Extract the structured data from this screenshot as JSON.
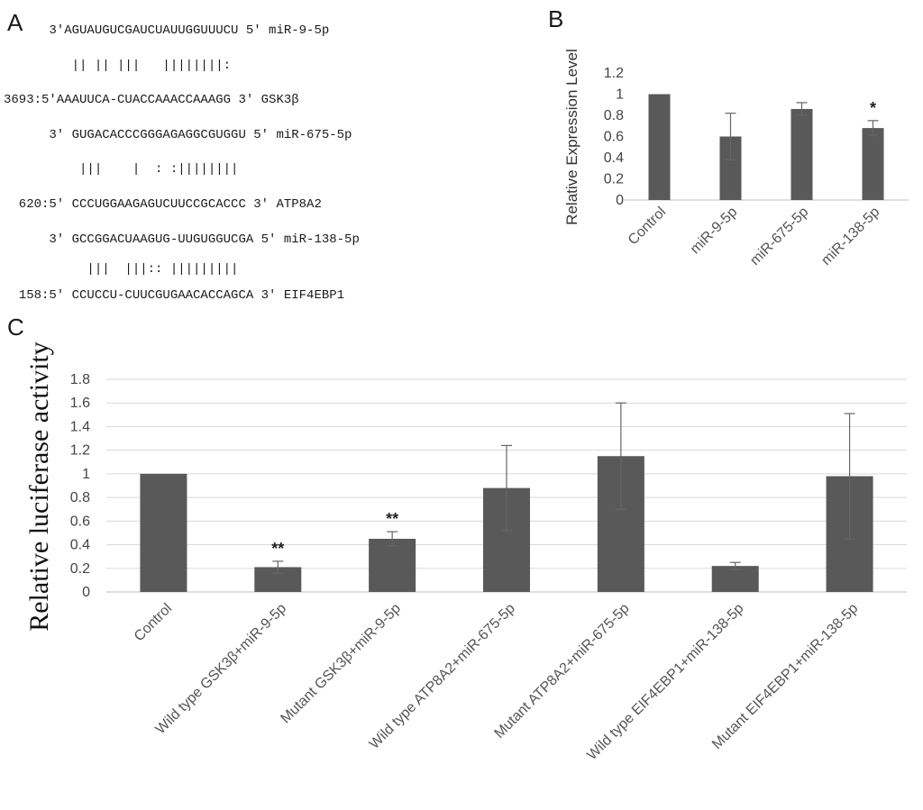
{
  "panels": {
    "a": {
      "label": "A",
      "lines": [
        "      3'AGUAUGUCGAUCUAUUGGUUUCU 5' miR-9-5p",
        "         || || |||   ||||||||:",
        "3693:5'AAAUUCA-CUACCAAACCAAAGG 3' GSK3β",
        "      3' GUGACACCCGGGAGAGGCGUGGU 5' miR-675-5p",
        "          |||    |  : :||||||||",
        "  620:5' CCCUGGAAGAGUCUUCCGCACCC 3' ATP8A2",
        "      3' GCCGGACUAAGUG-UUGUGGUCGA 5' miR-138-5p",
        "           |||  |||:: |||||||||",
        "  158:5' CCUCCU-CUUCGUGAACACCAGCA 3' EIF4EBP1"
      ]
    },
    "b": {
      "label": "B"
    },
    "c": {
      "label": "C"
    }
  },
  "chart_data": [
    {
      "id": "B",
      "type": "bar",
      "ylabel": "Relative Expression Level",
      "xlabel": "",
      "ylim": [
        0,
        1.2
      ],
      "yticks": [
        "0",
        "0.2",
        "0.4",
        "0.6",
        "0.8",
        "1",
        "1.2"
      ],
      "grid": false,
      "categories": [
        "Control",
        "miR-9-5p",
        "miR-675-5p",
        "miR-138-5p"
      ],
      "values": [
        1.0,
        0.6,
        0.86,
        0.68
      ],
      "errors": [
        0.0,
        0.22,
        0.06,
        0.07
      ],
      "annotations": [
        "",
        "",
        "",
        "*"
      ]
    },
    {
      "id": "C",
      "type": "bar",
      "ylabel": "Relative luciferase activity",
      "xlabel": "",
      "ylim": [
        0,
        1.8
      ],
      "yticks": [
        "0",
        "0.2",
        "0.4",
        "0.6",
        "0.8",
        "1",
        "1.2",
        "1.4",
        "1.6",
        "1.8"
      ],
      "grid": true,
      "categories": [
        "Control",
        "Wild type GSK3β+miR-9-5p",
        "Mutant GSK3β+miR-9-5p",
        "Wild type ATP8A2+miR-675-5p",
        "Mutant ATP8A2+miR-675-5p",
        "Wild type EIF4EBP1+miR-138-5p",
        "Mutant EIF4EBP1+miR-138-5p"
      ],
      "values": [
        1.0,
        0.21,
        0.45,
        0.88,
        1.15,
        0.22,
        0.98
      ],
      "errors": [
        0.0,
        0.05,
        0.06,
        0.36,
        0.45,
        0.03,
        0.53
      ],
      "annotations": [
        "",
        "**",
        "**",
        "",
        "",
        "",
        ""
      ]
    }
  ]
}
